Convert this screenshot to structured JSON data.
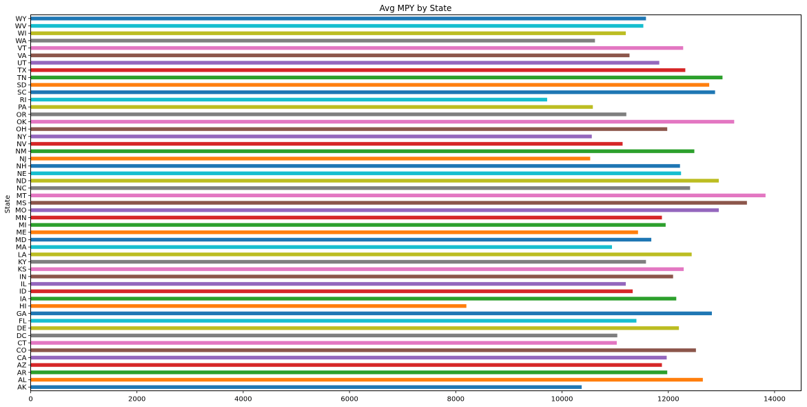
{
  "chart_data": {
    "type": "bar",
    "orientation": "horizontal",
    "title": "Avg MPY by State",
    "xlabel": "",
    "ylabel": "State",
    "xlim": [
      0,
      14500
    ],
    "xticks": [
      "0",
      "2000",
      "4000",
      "6000",
      "8000",
      "10000",
      "12000",
      "14000"
    ],
    "grid": false,
    "legend": "none",
    "categories": [
      "AK",
      "AL",
      "AR",
      "AZ",
      "CA",
      "CO",
      "CT",
      "DC",
      "DE",
      "FL",
      "GA",
      "HI",
      "IA",
      "ID",
      "IL",
      "IN",
      "KS",
      "KY",
      "LA",
      "MA",
      "MD",
      "ME",
      "MI",
      "MN",
      "MO",
      "MS",
      "MT",
      "NC",
      "ND",
      "NE",
      "NH",
      "NJ",
      "NM",
      "NV",
      "NY",
      "OH",
      "OK",
      "OR",
      "PA",
      "RI",
      "SC",
      "SD",
      "TN",
      "TX",
      "UT",
      "VA",
      "VT",
      "WA",
      "WI",
      "WV",
      "WY"
    ],
    "values": [
      10370,
      12650,
      11980,
      11880,
      11970,
      12520,
      11030,
      11040,
      12200,
      11400,
      12820,
      8200,
      12150,
      11330,
      11200,
      12090,
      12290,
      11580,
      12440,
      10940,
      11680,
      11430,
      11950,
      11880,
      12950,
      13480,
      13830,
      12410,
      12950,
      12240,
      12220,
      10530,
      12490,
      11140,
      10560,
      11980,
      13240,
      11210,
      10580,
      9720,
      12880,
      12770,
      13020,
      12320,
      11830,
      11270,
      12280,
      10620,
      11200,
      11530,
      11580
    ],
    "colors": [
      "#1f77b4",
      "#ff7f0e",
      "#2ca02c",
      "#d62728",
      "#9467bd",
      "#8c564b",
      "#e377c2",
      "#7f7f7f",
      "#bcbd22",
      "#17becf"
    ]
  }
}
